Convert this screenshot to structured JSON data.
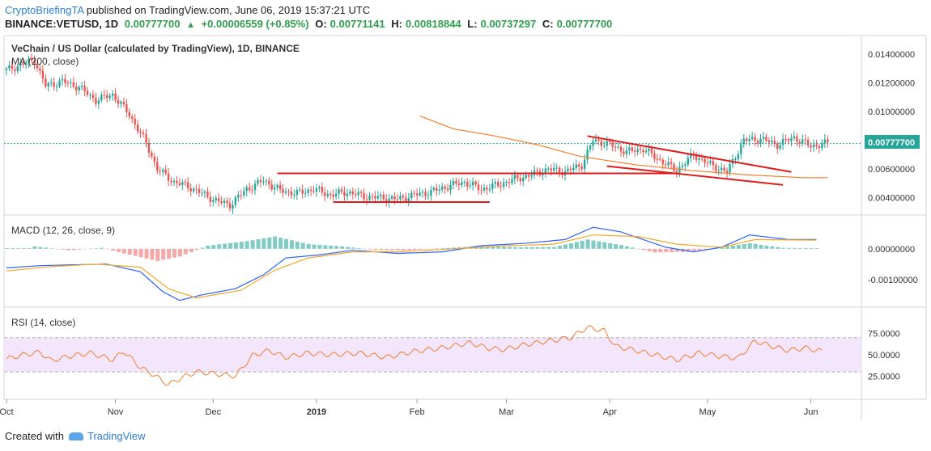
{
  "header": {
    "author": "CryptoBriefingTA",
    "published_text": "published on TradingView.com, June 06, 2019 15:37:21 UTC",
    "symbol": "BINANCE:VETUSD, 1D",
    "last": "0.00777700",
    "change": "+0.00006559 (+0.85%)",
    "o_label": "O:",
    "o_value": "0.00771141",
    "h_label": "H:",
    "h_value": "0.00818844",
    "l_label": "L:",
    "l_value": "0.00737297",
    "c_label": "C:",
    "c_value": "0.00777700"
  },
  "footer": {
    "created_with": "Created with",
    "brand": "TradingView"
  },
  "colors": {
    "up": "#26a69a",
    "down": "#ef5350",
    "ma": "#f57c2a",
    "macd": "#2962ff",
    "signal": "#f5a623",
    "rsi": "#f57c2a",
    "trend": "#e01b1b",
    "last_price": "#26a69a",
    "rsi_band": "#f3e5fb"
  },
  "chart_data": [
    {
      "type": "candlestick",
      "title": "VeChain / US Dollar (calculated by TradingView), 1D, BINANCE",
      "indicator_label": "MA (200, close)",
      "x_ticks": [
        "Oct",
        "Nov",
        "Dec",
        "2019",
        "Feb",
        "Mar",
        "Apr",
        "May",
        "Jun"
      ],
      "y_ticks": [
        "0.01400000",
        "0.01200000",
        "0.01000000",
        "0.00600000",
        "0.00400000"
      ],
      "ylim": [
        0.0028,
        0.0153
      ],
      "last_price_label": "0.00777700",
      "price_path": [
        [
          0,
          0.0129
        ],
        [
          10,
          0.0136
        ],
        [
          14,
          0.0118
        ],
        [
          20,
          0.0121
        ],
        [
          26,
          0.0117
        ],
        [
          32,
          0.0108
        ],
        [
          38,
          0.0112
        ],
        [
          44,
          0.0098
        ],
        [
          50,
          0.0078
        ],
        [
          54,
          0.006
        ],
        [
          60,
          0.0051
        ],
        [
          65,
          0.0048
        ],
        [
          70,
          0.0043
        ],
        [
          75,
          0.0038
        ],
        [
          80,
          0.0035
        ],
        [
          86,
          0.0046
        ],
        [
          92,
          0.0052
        ],
        [
          98,
          0.0045
        ],
        [
          104,
          0.0043
        ],
        [
          110,
          0.0046
        ],
        [
          116,
          0.0042
        ],
        [
          122,
          0.0044
        ],
        [
          128,
          0.0041
        ],
        [
          134,
          0.004
        ],
        [
          140,
          0.0039
        ],
        [
          146,
          0.0042
        ],
        [
          152,
          0.0044
        ],
        [
          158,
          0.0048
        ],
        [
          164,
          0.0051
        ],
        [
          170,
          0.0046
        ],
        [
          176,
          0.0049
        ],
        [
          182,
          0.0053
        ],
        [
          188,
          0.0056
        ],
        [
          194,
          0.006
        ],
        [
          200,
          0.0058
        ],
        [
          206,
          0.0063
        ],
        [
          210,
          0.008
        ],
        [
          216,
          0.0077
        ],
        [
          222,
          0.0072
        ],
        [
          228,
          0.0074
        ],
        [
          234,
          0.0066
        ],
        [
          240,
          0.0059
        ],
        [
          246,
          0.007
        ],
        [
          252,
          0.0063
        ],
        [
          258,
          0.0058
        ],
        [
          264,
          0.008
        ],
        [
          270,
          0.0081
        ],
        [
          276,
          0.0077
        ],
        [
          282,
          0.0082
        ],
        [
          288,
          0.0076
        ],
        [
          294,
          0.0078
        ]
      ],
      "ma_path": [
        [
          148,
          0.0097
        ],
        [
          160,
          0.0088
        ],
        [
          175,
          0.0083
        ],
        [
          190,
          0.0077
        ],
        [
          205,
          0.0069
        ],
        [
          225,
          0.0063
        ],
        [
          245,
          0.0059
        ],
        [
          265,
          0.0056
        ],
        [
          285,
          0.0054
        ],
        [
          294,
          0.0054
        ]
      ],
      "trendlines": [
        [
          [
            97,
            0.0057
          ],
          [
            240,
            0.0057
          ]
        ],
        [
          [
            117,
            0.0037
          ],
          [
            173,
            0.0037
          ]
        ],
        [
          [
            208,
            0.0083
          ],
          [
            281,
            0.0058
          ]
        ],
        [
          [
            215,
            0.0062
          ],
          [
            278,
            0.0049
          ]
        ]
      ]
    },
    {
      "type": "line",
      "title": "MACD (12, 26, close, 9)",
      "y_ticks": [
        "0.00000000",
        "-0.00100000"
      ],
      "ylim": [
        -0.0019,
        0.0011
      ],
      "series": [
        {
          "values": [
            [
              0,
              -0.00062
            ],
            [
              12,
              -0.00055
            ],
            [
              24,
              -0.00052
            ],
            [
              36,
              -0.0005
            ],
            [
              48,
              -0.00075
            ],
            [
              56,
              -0.0014
            ],
            [
              62,
              -0.00168
            ],
            [
              70,
              -0.0015
            ],
            [
              82,
              -0.0013
            ],
            [
              92,
              -0.00085
            ],
            [
              100,
              -0.0003
            ],
            [
              112,
              -0.0002
            ],
            [
              124,
              -5e-05
            ],
            [
              140,
              -0.00015
            ],
            [
              156,
              -0.0001
            ],
            [
              170,
              0.0001
            ],
            [
              186,
              0.00018
            ],
            [
              200,
              0.0003
            ],
            [
              210,
              0.0007
            ],
            [
              220,
              0.00055
            ],
            [
              236,
              5e-05
            ],
            [
              246,
              -0.0001
            ],
            [
              256,
              5e-05
            ],
            [
              266,
              0.00045
            ],
            [
              280,
              0.0003
            ],
            [
              290,
              0.0003
            ]
          ]
        },
        {
          "values": [
            [
              0,
              -0.00072
            ],
            [
              16,
              -0.00058
            ],
            [
              32,
              -0.0005
            ],
            [
              48,
              -0.0006
            ],
            [
              58,
              -0.0013
            ],
            [
              68,
              -0.0016
            ],
            [
              84,
              -0.00135
            ],
            [
              96,
              -0.0007
            ],
            [
              108,
              -0.0003
            ],
            [
              124,
              -0.0001
            ],
            [
              140,
              -0.0001
            ],
            [
              160,
              0.0
            ],
            [
              180,
              0.0001
            ],
            [
              196,
              0.00015
            ],
            [
              210,
              0.00045
            ],
            [
              226,
              0.0004
            ],
            [
              240,
              0.00015
            ],
            [
              256,
              5e-05
            ],
            [
              268,
              0.0003
            ],
            [
              290,
              0.00028
            ]
          ]
        }
      ],
      "histogram": [
        [
          10,
          8e-05
        ],
        [
          22,
          -5e-05
        ],
        [
          34,
          3e-05
        ],
        [
          42,
          -0.00015
        ],
        [
          54,
          -0.0004
        ],
        [
          62,
          -0.00025
        ],
        [
          72,
          0.0001
        ],
        [
          86,
          0.00025
        ],
        [
          96,
          0.0004
        ],
        [
          108,
          0.00015
        ],
        [
          120,
          8e-05
        ],
        [
          132,
          -4e-05
        ],
        [
          144,
          -5e-05
        ],
        [
          158,
          3e-05
        ],
        [
          170,
          8e-05
        ],
        [
          184,
          5e-05
        ],
        [
          196,
          6e-05
        ],
        [
          208,
          0.0003
        ],
        [
          220,
          0.00012
        ],
        [
          232,
          -0.00012
        ],
        [
          244,
          -0.0001
        ],
        [
          256,
          5e-05
        ],
        [
          266,
          0.00018
        ],
        [
          278,
          3e-05
        ],
        [
          290,
          2e-05
        ]
      ]
    },
    {
      "type": "line",
      "title": "RSI (14, close)",
      "y_ticks": [
        "75.0000",
        "50.0000",
        "25.0000"
      ],
      "ylim": [
        0,
        100
      ],
      "band": [
        30,
        70
      ],
      "values": [
        [
          0,
          45
        ],
        [
          6,
          50
        ],
        [
          12,
          53
        ],
        [
          16,
          43
        ],
        [
          22,
          48
        ],
        [
          30,
          52
        ],
        [
          38,
          44
        ],
        [
          42,
          54
        ],
        [
          48,
          35
        ],
        [
          52,
          28
        ],
        [
          58,
          15
        ],
        [
          62,
          22
        ],
        [
          68,
          30
        ],
        [
          74,
          28
        ],
        [
          82,
          25
        ],
        [
          88,
          49
        ],
        [
          94,
          55
        ],
        [
          100,
          47
        ],
        [
          108,
          52
        ],
        [
          116,
          50
        ],
        [
          126,
          52
        ],
        [
          136,
          47
        ],
        [
          146,
          54
        ],
        [
          156,
          58
        ],
        [
          166,
          64
        ],
        [
          172,
          58
        ],
        [
          178,
          56
        ],
        [
          186,
          62
        ],
        [
          194,
          66
        ],
        [
          202,
          70
        ],
        [
          208,
          82
        ],
        [
          214,
          78
        ],
        [
          218,
          60
        ],
        [
          224,
          56
        ],
        [
          232,
          50
        ],
        [
          240,
          44
        ],
        [
          248,
          52
        ],
        [
          256,
          48
        ],
        [
          262,
          46
        ],
        [
          268,
          66
        ],
        [
          274,
          60
        ],
        [
          280,
          55
        ],
        [
          286,
          58
        ],
        [
          292,
          54
        ]
      ]
    }
  ]
}
